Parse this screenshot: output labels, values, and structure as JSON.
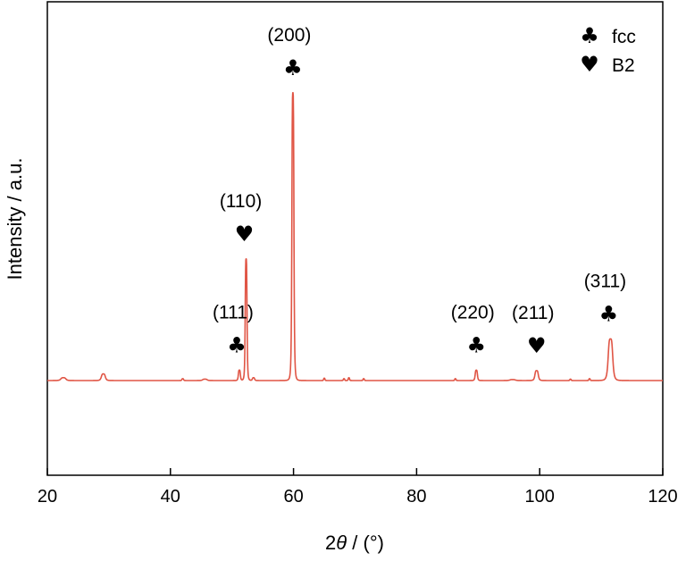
{
  "chart_data": {
    "type": "line",
    "xlabel_prefix": "2",
    "xlabel_var": "θ",
    "xlabel_suffix": " / (°)",
    "ylabel": "Intensity / a.u.",
    "xlim": [
      20,
      120
    ],
    "ylim": [
      0,
      1
    ],
    "x_ticks": [
      20,
      40,
      60,
      80,
      100,
      120
    ],
    "y_ticks_shown": false,
    "grid": false,
    "legend_position": "top-right",
    "legend": [
      {
        "symbol": "♣",
        "label": "fcc"
      },
      {
        "symbol": "♥",
        "label": "B2"
      }
    ],
    "series": [
      {
        "color": "#e05545",
        "baseline": 0.2,
        "peaks": [
          {
            "x": 22.6,
            "h": 0.006,
            "w": 0.45
          },
          {
            "x": 29.1,
            "h": 0.014,
            "w": 0.35
          },
          {
            "x": 42.0,
            "h": 0.004,
            "w": 0.15
          },
          {
            "x": 45.6,
            "h": 0.003,
            "w": 0.4
          },
          {
            "x": 51.2,
            "h": 0.022,
            "w": 0.18
          },
          {
            "x": 52.3,
            "h": 0.257,
            "w": 0.16
          },
          {
            "x": 53.5,
            "h": 0.006,
            "w": 0.2
          },
          {
            "x": 59.9,
            "h": 0.608,
            "w": 0.18
          },
          {
            "x": 65.0,
            "h": 0.005,
            "w": 0.12
          },
          {
            "x": 68.2,
            "h": 0.004,
            "w": 0.12
          },
          {
            "x": 69.0,
            "h": 0.006,
            "w": 0.12
          },
          {
            "x": 71.4,
            "h": 0.004,
            "w": 0.12
          },
          {
            "x": 86.3,
            "h": 0.004,
            "w": 0.12
          },
          {
            "x": 89.7,
            "h": 0.022,
            "w": 0.2
          },
          {
            "x": 95.6,
            "h": 0.002,
            "w": 0.5
          },
          {
            "x": 99.5,
            "h": 0.021,
            "w": 0.3
          },
          {
            "x": 105.0,
            "h": 0.003,
            "w": 0.12
          },
          {
            "x": 108.1,
            "h": 0.004,
            "w": 0.12
          },
          {
            "x": 111.5,
            "h": 0.088,
            "w": 0.4
          }
        ]
      }
    ],
    "annotations": [
      {
        "hkl": "(111)",
        "symbol": "♣",
        "phase": "fcc",
        "x": 51.2
      },
      {
        "hkl": "(110)",
        "symbol": "♥",
        "phase": "B2",
        "x": 52.3
      },
      {
        "hkl": "(200)",
        "symbol": "♣",
        "phase": "fcc",
        "x": 59.9
      },
      {
        "hkl": "(220)",
        "symbol": "♣",
        "phase": "fcc",
        "x": 89.7
      },
      {
        "hkl": "(211)",
        "symbol": "♥",
        "phase": "B2",
        "x": 99.5
      },
      {
        "hkl": "(311)",
        "symbol": "♣",
        "phase": "fcc",
        "x": 111.5
      }
    ]
  }
}
